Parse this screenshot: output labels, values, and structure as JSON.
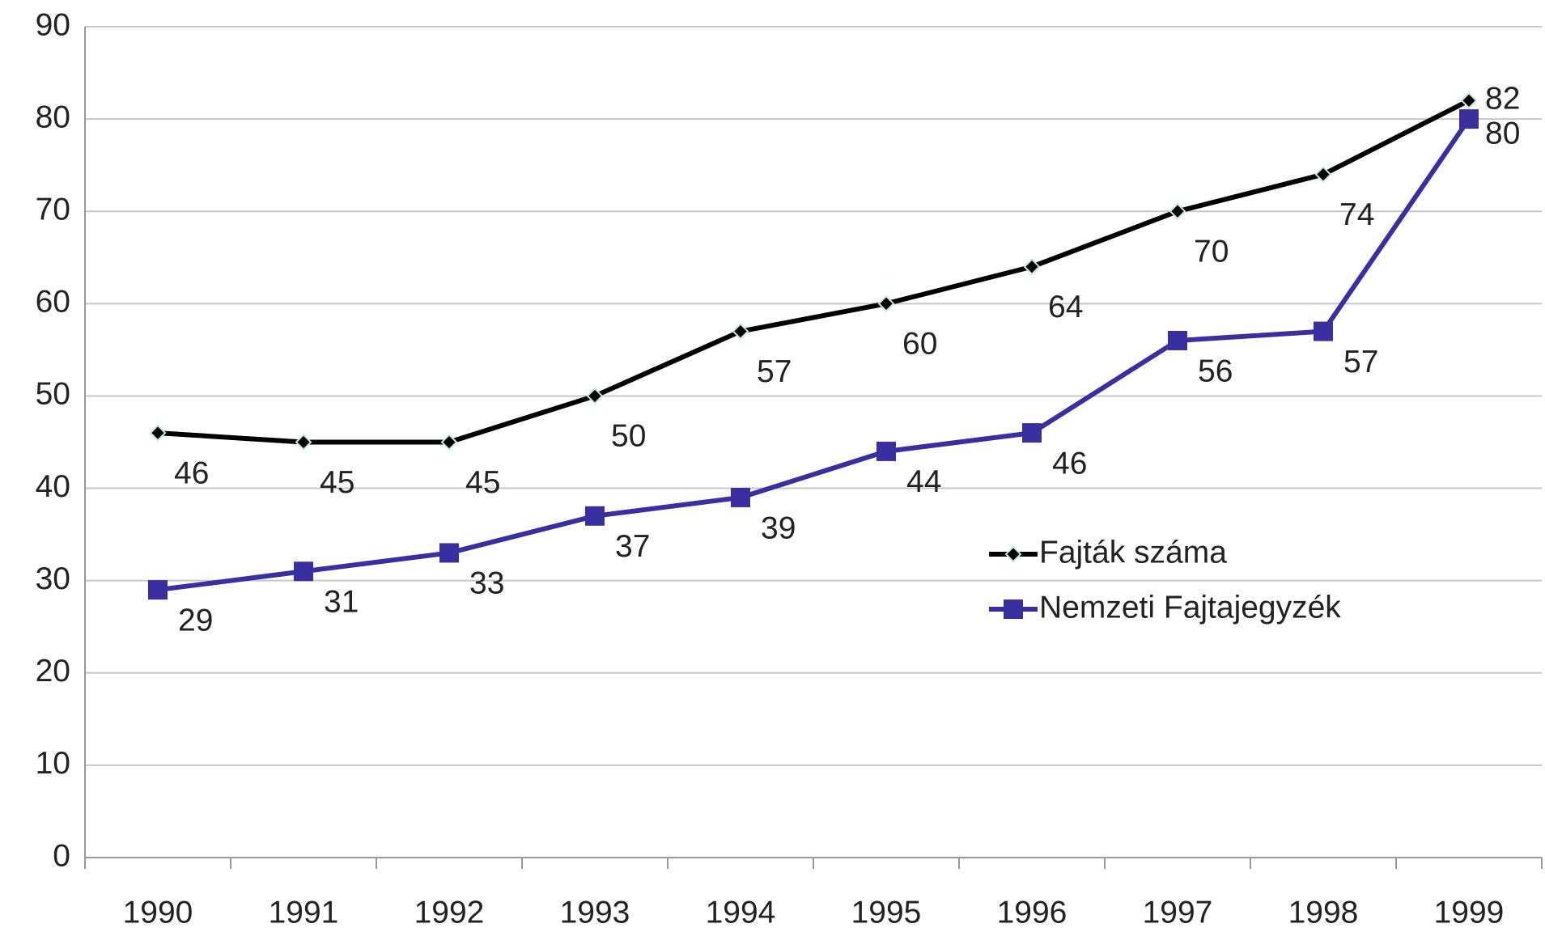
{
  "chart_data": {
    "type": "line",
    "categories": [
      "1990",
      "1991",
      "1992",
      "1993",
      "1994",
      "1995",
      "1996",
      "1997",
      "1998",
      "1999"
    ],
    "series": [
      {
        "name": "Fajták száma",
        "color": "#000000",
        "marker": "diamond",
        "values": [
          46,
          45,
          45,
          50,
          57,
          60,
          64,
          70,
          74,
          82
        ]
      },
      {
        "name": "Nemzeti Fajtajegyzék",
        "color": "#3a2fa0",
        "marker": "square",
        "values": [
          29,
          31,
          33,
          37,
          39,
          44,
          46,
          56,
          57,
          80
        ]
      }
    ],
    "ylim": [
      0,
      90
    ],
    "yticks": [
      0,
      10,
      20,
      30,
      40,
      50,
      60,
      70,
      80,
      90
    ],
    "grid": true
  }
}
